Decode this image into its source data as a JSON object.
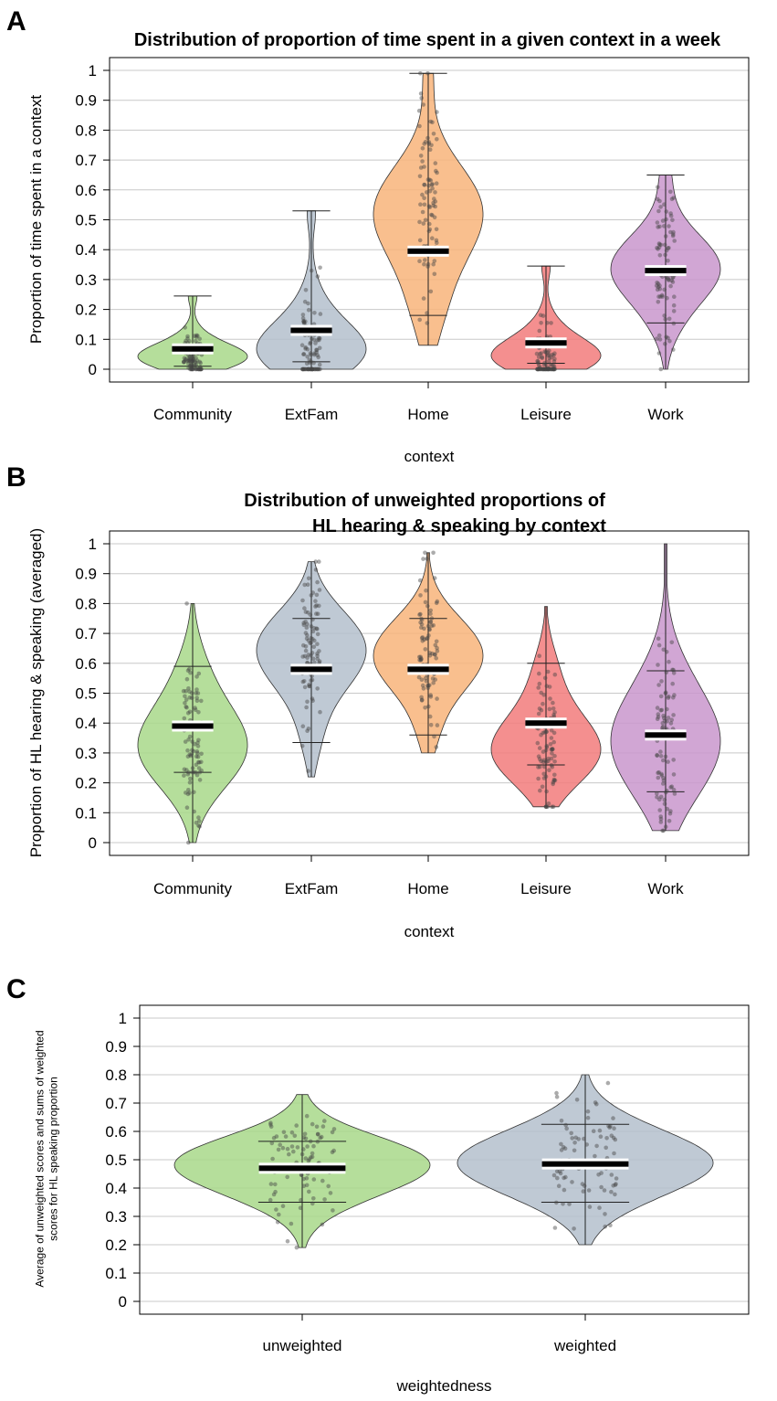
{
  "chart_data": [
    {
      "type": "violin",
      "panel": "A",
      "title": "Distribution of proportion of time spent in a given context in a week",
      "xlabel": "context",
      "ylabel": "Proportion of time spent in a context",
      "ylim": [
        0,
        1
      ],
      "yticks": [
        "0",
        "0.1",
        "0.2",
        "0.3",
        "0.4",
        "0.5",
        "0.6",
        "0.7",
        "0.8",
        "0.9",
        "1"
      ],
      "categories": [
        "Community",
        "ExtFam",
        "Home",
        "Leisure",
        "Work"
      ],
      "colors": [
        "#a8d88a",
        "#b4bfcc",
        "#f8b47a",
        "#f27b7b",
        "#c996cc"
      ],
      "series": [
        {
          "name": "Community",
          "min": 0.0,
          "max": 0.245,
          "mean": 0.068,
          "q10": 0.01,
          "q90": 0.245,
          "peak": 0.04
        },
        {
          "name": "ExtFam",
          "min": 0.0,
          "max": 0.53,
          "mean": 0.13,
          "q10": 0.025,
          "q90": 0.53,
          "peak": 0.06
        },
        {
          "name": "Home",
          "min": 0.08,
          "max": 0.99,
          "mean": 0.395,
          "q10": 0.18,
          "q90": 0.99,
          "peak": 0.55
        },
        {
          "name": "Leisure",
          "min": 0.0,
          "max": 0.345,
          "mean": 0.088,
          "q10": 0.02,
          "q90": 0.345,
          "peak": 0.04
        },
        {
          "name": "Work",
          "min": 0.0,
          "max": 0.65,
          "mean": 0.33,
          "q10": 0.155,
          "q90": 0.65,
          "peak": 0.34
        }
      ]
    },
    {
      "type": "violin",
      "panel": "B",
      "title": "Distribution of unweighted proportions of",
      "title_line2": "HL hearing & speaking by context",
      "xlabel": "context",
      "ylabel": "Proportion of HL hearing & speaking (averaged)",
      "ylim": [
        0,
        1
      ],
      "yticks": [
        "0",
        "0.1",
        "0.2",
        "0.3",
        "0.4",
        "0.5",
        "0.6",
        "0.7",
        "0.8",
        "0.9",
        "1"
      ],
      "categories": [
        "Community",
        "ExtFam",
        "Home",
        "Leisure",
        "Work"
      ],
      "colors": [
        "#a8d88a",
        "#b4bfcc",
        "#f8b47a",
        "#f27b7b",
        "#c996cc"
      ],
      "series": [
        {
          "name": "Community",
          "min": 0.0,
          "max": 0.8,
          "mean": 0.39,
          "q10": 0.235,
          "q90": 0.59,
          "peak": 0.32
        },
        {
          "name": "ExtFam",
          "min": 0.22,
          "max": 0.94,
          "mean": 0.58,
          "q10": 0.335,
          "q90": 0.75,
          "peak": 0.65
        },
        {
          "name": "Home",
          "min": 0.3,
          "max": 0.97,
          "mean": 0.58,
          "q10": 0.36,
          "q90": 0.75,
          "peak": 0.63
        },
        {
          "name": "Leisure",
          "min": 0.12,
          "max": 0.79,
          "mean": 0.4,
          "q10": 0.26,
          "q90": 0.6,
          "peak": 0.3
        },
        {
          "name": "Work",
          "min": 0.04,
          "max": 1.0,
          "mean": 0.36,
          "q10": 0.17,
          "q90": 0.575,
          "peak": 0.34
        }
      ]
    },
    {
      "type": "violin",
      "panel": "C",
      "title": "",
      "xlabel": "weightedness",
      "ylabel": "Average of unweighted scores and sums of weighted",
      "ylabel_line2": "scores for HL speaking proportion",
      "ylim": [
        0,
        1
      ],
      "yticks": [
        "0",
        "0.1",
        "0.2",
        "0.3",
        "0.4",
        "0.5",
        "0.6",
        "0.7",
        "0.8",
        "0.9",
        "1"
      ],
      "categories": [
        "unweighted",
        "weighted"
      ],
      "colors": [
        "#a8d88a",
        "#b4bfcc"
      ],
      "series": [
        {
          "name": "unweighted",
          "min": 0.19,
          "max": 0.73,
          "mean": 0.47,
          "q10": 0.35,
          "q90": 0.565,
          "peak": 0.48
        },
        {
          "name": "weighted",
          "min": 0.2,
          "max": 0.8,
          "mean": 0.485,
          "q10": 0.35,
          "q90": 0.625,
          "peak": 0.49
        }
      ]
    }
  ],
  "panel_labels": [
    "A",
    "B",
    "C"
  ]
}
